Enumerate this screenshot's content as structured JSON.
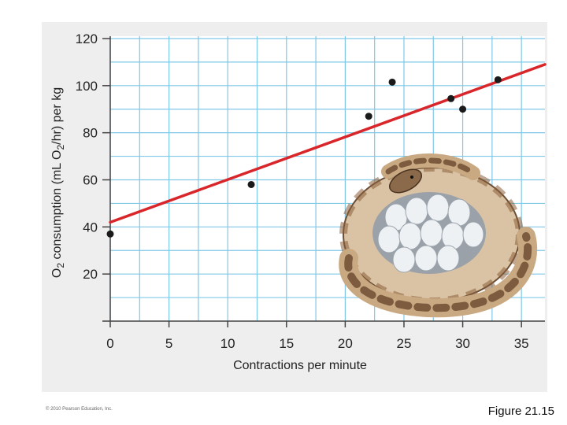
{
  "chart_data": {
    "type": "scatter",
    "xlabel": "Contractions per minute",
    "ylabel_parts": [
      "O",
      "2",
      " consumption (mL O",
      "2",
      "/hr) per kg"
    ],
    "x_ticks": [
      0,
      5,
      10,
      15,
      20,
      25,
      30,
      35
    ],
    "y_ticks": [
      20,
      40,
      60,
      80,
      100,
      120
    ],
    "xlim": [
      0,
      37
    ],
    "ylim": [
      0,
      121
    ],
    "grid": true,
    "points": [
      {
        "x": 0,
        "y": 37
      },
      {
        "x": 12,
        "y": 58
      },
      {
        "x": 22,
        "y": 87
      },
      {
        "x": 24,
        "y": 101.5
      },
      {
        "x": 29,
        "y": 94.5
      },
      {
        "x": 30,
        "y": 90
      },
      {
        "x": 33,
        "y": 102.5
      }
    ],
    "trendline": {
      "type": "linear",
      "from": {
        "x": 0,
        "y": 42
      },
      "to": {
        "x": 37,
        "y": 109
      }
    }
  },
  "colors": {
    "grid": "#7fc8e8",
    "trendline": "#d9262a",
    "points": "#1a1a1a",
    "plot_background": "#ffffff",
    "frame_background": "#eeeeee"
  },
  "illustration": {
    "icon": "python-coiled-on-eggs-icon"
  },
  "credit": "© 2010 Pearson Education, Inc.",
  "caption": "Figure 21.15"
}
